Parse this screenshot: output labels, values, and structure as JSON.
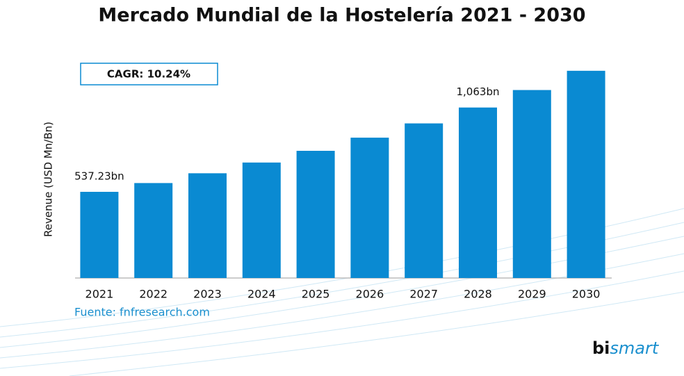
{
  "chart_data": {
    "type": "bar",
    "title": "Mercado Mundial de la Hostelería 2021 - 2030",
    "y_label": "Revenue (USD Mn/Bn)",
    "annotation": "CAGR: 10.24%",
    "source": "Fuente: fnfresearch.com",
    "logo": {
      "prefix": "bi",
      "suffix": "smart"
    },
    "categories": [
      "2021",
      "2022",
      "2023",
      "2024",
      "2025",
      "2026",
      "2027",
      "2028",
      "2029",
      "2030"
    ],
    "values": [
      537.23,
      592,
      653,
      720,
      793,
      875,
      964,
      1063,
      1172,
      1292
    ],
    "value_labels": [
      "537.23bn",
      null,
      null,
      null,
      null,
      null,
      null,
      "1,063bn",
      null,
      null
    ],
    "color": "#0a8ad2",
    "ylim": [
      0,
      1300
    ]
  }
}
